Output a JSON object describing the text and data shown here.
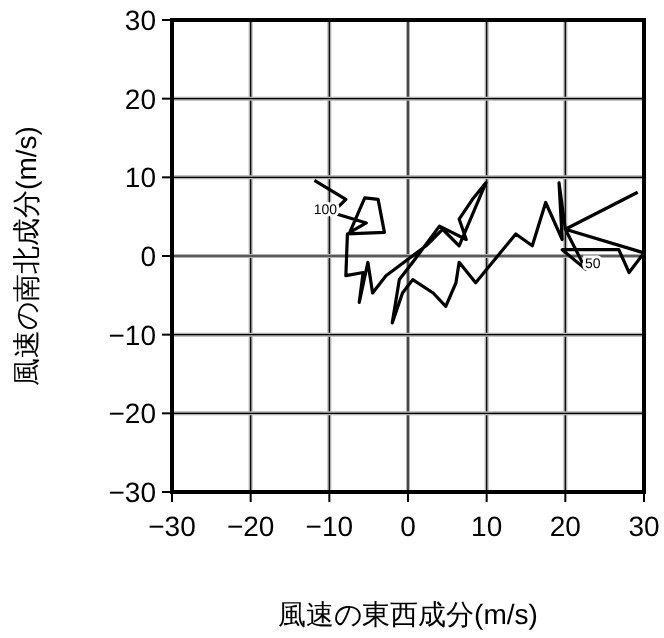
{
  "chart_data": {
    "type": "line",
    "xlabel": "風速の東西成分(m/s)",
    "ylabel": "風速の南北成分(m/s)",
    "xlim": [
      -30,
      30
    ],
    "ylim": [
      -30,
      30
    ],
    "xticks": [
      -30,
      -20,
      -10,
      0,
      10,
      20,
      30
    ],
    "yticks": [
      -30,
      -20,
      -10,
      0,
      10,
      20,
      30
    ],
    "grid": true,
    "marker": "none",
    "line_style": "solid",
    "annotations": [
      {
        "text": "100",
        "x": -10.5,
        "y": 5.8
      },
      {
        "text": "50",
        "x": 23.5,
        "y": -1.0
      }
    ],
    "series": [
      {
        "color": "#000000",
        "x": [
          -11.9,
          -7.9,
          -9.6,
          -5.3,
          -7.4,
          -5.5,
          -3.8,
          -3.0,
          -7.7,
          -7.9,
          -5.7,
          -6.2,
          -5.1,
          -4.5,
          -2.8,
          2.3,
          4.4,
          6.5,
          9.9,
          8.2,
          6.5,
          7.4,
          4.0,
          0.6,
          -1.1,
          -2.0,
          -0.7,
          0.6,
          3.2,
          4.8,
          6.1,
          6.5,
          8.6,
          13.7,
          15.8,
          17.5,
          19.6,
          19.2,
          20.0,
          22.6,
          19.6,
          26.8,
          28.1,
          30.0,
          20.0,
          29.2
        ],
        "values": [
          9.6,
          7.2,
          5.5,
          4.2,
          3.0,
          7.4,
          7.2,
          3.0,
          2.8,
          -2.5,
          -2.1,
          -5.9,
          -0.8,
          -4.7,
          -2.5,
          1.3,
          3.4,
          1.3,
          9.3,
          7.2,
          4.7,
          2.1,
          3.8,
          -0.8,
          -3.0,
          -8.5,
          -4.7,
          -3.0,
          -4.7,
          -6.4,
          -3.4,
          -0.8,
          -3.4,
          2.8,
          1.3,
          6.8,
          2.1,
          9.3,
          3.4,
          -1.7,
          0.8,
          0.8,
          -2.1,
          0.4,
          3.4,
          8.1
        ]
      }
    ]
  }
}
